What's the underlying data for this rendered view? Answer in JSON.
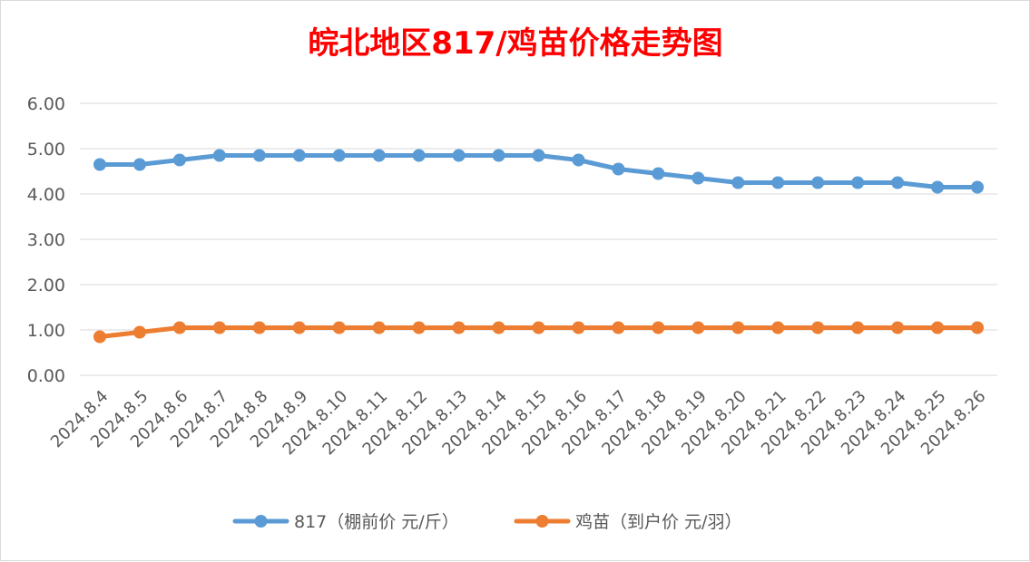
{
  "chart_data": {
    "type": "line",
    "title": "皖北地区817/鸡苗价格走势图",
    "title_color": "#ff0000",
    "xlabel": "",
    "ylabel": "",
    "ylim": [
      0,
      6
    ],
    "y_ticks": [
      "0.00",
      "1.00",
      "2.00",
      "3.00",
      "4.00",
      "5.00",
      "6.00"
    ],
    "grid": true,
    "legend_position": "bottom",
    "categories": [
      "2024.8.4",
      "2024.8.5",
      "2024.8.6",
      "2024.8.7",
      "2024.8.8",
      "2024.8.9",
      "2024.8.10",
      "2024.8.11",
      "2024.8.12",
      "2024.8.13",
      "2024.8.14",
      "2024.8.15",
      "2024.8.16",
      "2024.8.17",
      "2024.8.18",
      "2024.8.19",
      "2024.8.20",
      "2024.8.21",
      "2024.8.22",
      "2024.8.23",
      "2024.8.24",
      "2024.8.25",
      "2024.8.26"
    ],
    "series": [
      {
        "name": "817（棚前价 元/斤）",
        "color": "#5b9bd5",
        "values": [
          4.65,
          4.65,
          4.75,
          4.85,
          4.85,
          4.85,
          4.85,
          4.85,
          4.85,
          4.85,
          4.85,
          4.85,
          4.75,
          4.55,
          4.45,
          4.35,
          4.25,
          4.25,
          4.25,
          4.25,
          4.25,
          4.15,
          4.15
        ]
      },
      {
        "name": "鸡苗（到户价 元/羽）",
        "color": "#ed7d31",
        "values": [
          0.85,
          0.95,
          1.05,
          1.05,
          1.05,
          1.05,
          1.05,
          1.05,
          1.05,
          1.05,
          1.05,
          1.05,
          1.05,
          1.05,
          1.05,
          1.05,
          1.05,
          1.05,
          1.05,
          1.05,
          1.05,
          1.05,
          1.05
        ]
      }
    ]
  }
}
